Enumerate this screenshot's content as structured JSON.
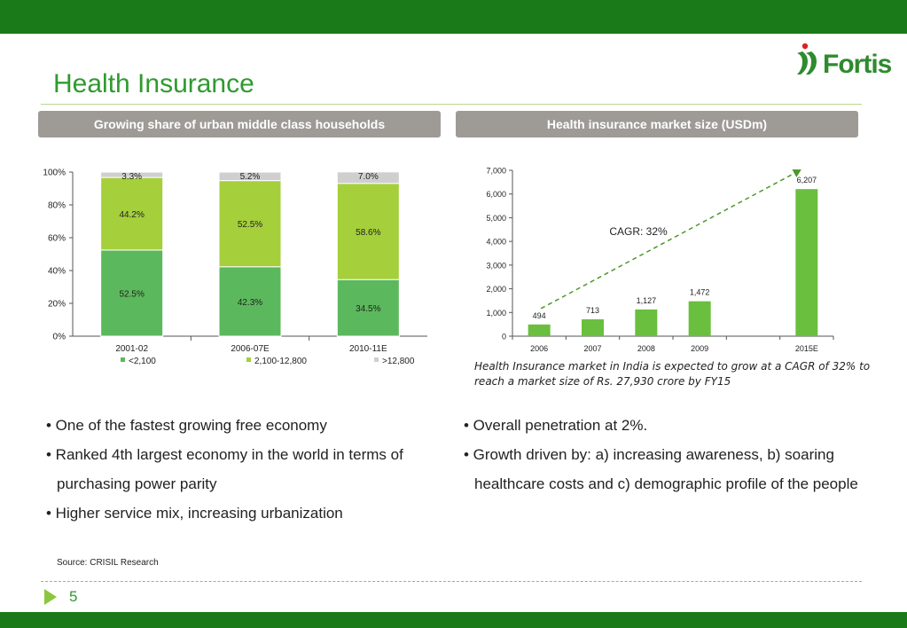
{
  "slide": {
    "title": "Health Insurance",
    "logo_text": "Fortis",
    "page_number": "5",
    "source": "Source: CRISIL Research",
    "colors": {
      "brand_green": "#1a7a1a",
      "title_green": "#2f9a2f",
      "accent_lime": "#8cc63f",
      "header_gray": "#9e9b96"
    }
  },
  "left_panel": {
    "header": "Growing share of urban middle class households",
    "bullets": [
      "• One of the fastest growing free economy",
      "• Ranked 4th largest economy in the world in terms of purchasing power parity",
      "• Higher service mix, increasing urbanization"
    ]
  },
  "right_panel": {
    "header": "Health insurance market size (USDm)",
    "caption": "Health Insurance market in India is expected to grow at a CAGR of 32% to reach a market size of Rs. 27,930 crore by FY15",
    "bullets": [
      "• Overall penetration  at 2%.",
      "• Growth driven by: a) increasing awareness, b) soaring healthcare costs and c) demographic profile of the people"
    ]
  },
  "chart_data": [
    {
      "type": "bar",
      "stacked": true,
      "categories": [
        "2001-02",
        "2006-07E",
        "2010-11E"
      ],
      "series": [
        {
          "name": "<2,100",
          "values": [
            52.5,
            42.3,
            34.5
          ],
          "labels": [
            "52.5%",
            "42.3%",
            "34.5%"
          ],
          "color": "#5cb85c"
        },
        {
          "name": "2,100-12,800",
          "values": [
            44.2,
            52.5,
            58.6
          ],
          "labels": [
            "44.2%",
            "52.5%",
            "58.6%"
          ],
          "color": "#a5cf3b"
        },
        {
          "name": ">12,800",
          "values": [
            3.3,
            5.2,
            7.0
          ],
          "labels": [
            "3.3%",
            "5.2%",
            "7.0%"
          ],
          "color": "#cfcfcf"
        }
      ],
      "ylim": [
        0,
        100
      ],
      "yticks": [
        "0%",
        "20%",
        "40%",
        "60%",
        "80%",
        "100%"
      ],
      "legend": "bottom"
    },
    {
      "type": "bar",
      "categories": [
        "2006",
        "2007",
        "2008",
        "2009",
        "",
        "2015E"
      ],
      "values": [
        494,
        713,
        1127,
        1472,
        null,
        6207
      ],
      "labels": [
        "494",
        "713",
        "1,127",
        "1,472",
        "",
        "6,207"
      ],
      "color": "#6abf3e",
      "ylim": [
        0,
        7000
      ],
      "yticks": [
        "0",
        "1,000",
        "2,000",
        "3,000",
        "4,000",
        "5,000",
        "6,000",
        "7,000"
      ],
      "annotation": "CAGR: 32%",
      "trend_arrow": {
        "from": "2006",
        "to": "2015E",
        "color": "#4a9a2a"
      }
    }
  ]
}
